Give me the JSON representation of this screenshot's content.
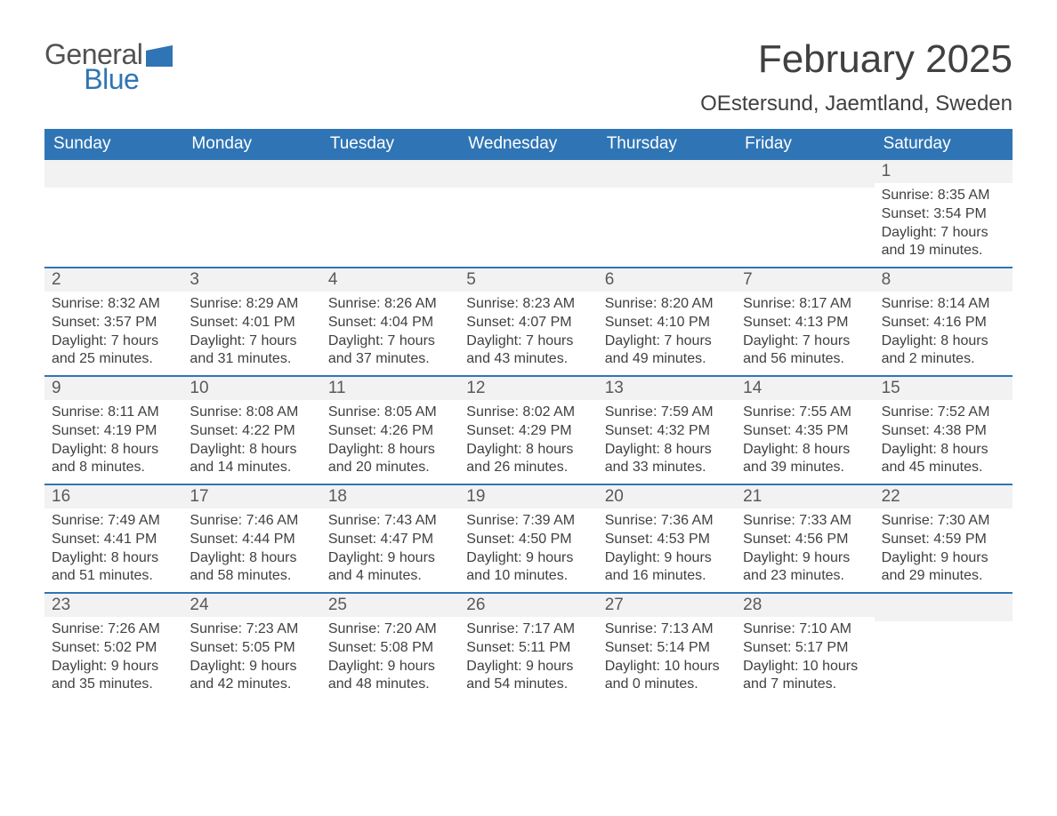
{
  "brand": {
    "word1": "General",
    "word2": "Blue",
    "accent_color": "#2f75b5"
  },
  "title": "February 2025",
  "location": "OEstersund, Jaemtland, Sweden",
  "colors": {
    "header_bg": "#2f75b5",
    "header_text": "#ffffff",
    "daynum_bg": "#f2f2f2",
    "daynum_text": "#595959",
    "body_text": "#404040",
    "row_divider": "#2f75b5",
    "page_bg": "#ffffff"
  },
  "fonts": {
    "title_pt": 44,
    "location_pt": 24,
    "header_pt": 19,
    "daynum_pt": 19,
    "detail_pt": 16
  },
  "day_names": [
    "Sunday",
    "Monday",
    "Tuesday",
    "Wednesday",
    "Thursday",
    "Friday",
    "Saturday"
  ],
  "weeks": [
    [
      {
        "blank": true
      },
      {
        "blank": true
      },
      {
        "blank": true
      },
      {
        "blank": true
      },
      {
        "blank": true
      },
      {
        "blank": true
      },
      {
        "n": "1",
        "sunrise": "Sunrise: 8:35 AM",
        "sunset": "Sunset: 3:54 PM",
        "dl1": "Daylight: 7 hours",
        "dl2": "and 19 minutes."
      }
    ],
    [
      {
        "n": "2",
        "sunrise": "Sunrise: 8:32 AM",
        "sunset": "Sunset: 3:57 PM",
        "dl1": "Daylight: 7 hours",
        "dl2": "and 25 minutes."
      },
      {
        "n": "3",
        "sunrise": "Sunrise: 8:29 AM",
        "sunset": "Sunset: 4:01 PM",
        "dl1": "Daylight: 7 hours",
        "dl2": "and 31 minutes."
      },
      {
        "n": "4",
        "sunrise": "Sunrise: 8:26 AM",
        "sunset": "Sunset: 4:04 PM",
        "dl1": "Daylight: 7 hours",
        "dl2": "and 37 minutes."
      },
      {
        "n": "5",
        "sunrise": "Sunrise: 8:23 AM",
        "sunset": "Sunset: 4:07 PM",
        "dl1": "Daylight: 7 hours",
        "dl2": "and 43 minutes."
      },
      {
        "n": "6",
        "sunrise": "Sunrise: 8:20 AM",
        "sunset": "Sunset: 4:10 PM",
        "dl1": "Daylight: 7 hours",
        "dl2": "and 49 minutes."
      },
      {
        "n": "7",
        "sunrise": "Sunrise: 8:17 AM",
        "sunset": "Sunset: 4:13 PM",
        "dl1": "Daylight: 7 hours",
        "dl2": "and 56 minutes."
      },
      {
        "n": "8",
        "sunrise": "Sunrise: 8:14 AM",
        "sunset": "Sunset: 4:16 PM",
        "dl1": "Daylight: 8 hours",
        "dl2": "and 2 minutes."
      }
    ],
    [
      {
        "n": "9",
        "sunrise": "Sunrise: 8:11 AM",
        "sunset": "Sunset: 4:19 PM",
        "dl1": "Daylight: 8 hours",
        "dl2": "and 8 minutes."
      },
      {
        "n": "10",
        "sunrise": "Sunrise: 8:08 AM",
        "sunset": "Sunset: 4:22 PM",
        "dl1": "Daylight: 8 hours",
        "dl2": "and 14 minutes."
      },
      {
        "n": "11",
        "sunrise": "Sunrise: 8:05 AM",
        "sunset": "Sunset: 4:26 PM",
        "dl1": "Daylight: 8 hours",
        "dl2": "and 20 minutes."
      },
      {
        "n": "12",
        "sunrise": "Sunrise: 8:02 AM",
        "sunset": "Sunset: 4:29 PM",
        "dl1": "Daylight: 8 hours",
        "dl2": "and 26 minutes."
      },
      {
        "n": "13",
        "sunrise": "Sunrise: 7:59 AM",
        "sunset": "Sunset: 4:32 PM",
        "dl1": "Daylight: 8 hours",
        "dl2": "and 33 minutes."
      },
      {
        "n": "14",
        "sunrise": "Sunrise: 7:55 AM",
        "sunset": "Sunset: 4:35 PM",
        "dl1": "Daylight: 8 hours",
        "dl2": "and 39 minutes."
      },
      {
        "n": "15",
        "sunrise": "Sunrise: 7:52 AM",
        "sunset": "Sunset: 4:38 PM",
        "dl1": "Daylight: 8 hours",
        "dl2": "and 45 minutes."
      }
    ],
    [
      {
        "n": "16",
        "sunrise": "Sunrise: 7:49 AM",
        "sunset": "Sunset: 4:41 PM",
        "dl1": "Daylight: 8 hours",
        "dl2": "and 51 minutes."
      },
      {
        "n": "17",
        "sunrise": "Sunrise: 7:46 AM",
        "sunset": "Sunset: 4:44 PM",
        "dl1": "Daylight: 8 hours",
        "dl2": "and 58 minutes."
      },
      {
        "n": "18",
        "sunrise": "Sunrise: 7:43 AM",
        "sunset": "Sunset: 4:47 PM",
        "dl1": "Daylight: 9 hours",
        "dl2": "and 4 minutes."
      },
      {
        "n": "19",
        "sunrise": "Sunrise: 7:39 AM",
        "sunset": "Sunset: 4:50 PM",
        "dl1": "Daylight: 9 hours",
        "dl2": "and 10 minutes."
      },
      {
        "n": "20",
        "sunrise": "Sunrise: 7:36 AM",
        "sunset": "Sunset: 4:53 PM",
        "dl1": "Daylight: 9 hours",
        "dl2": "and 16 minutes."
      },
      {
        "n": "21",
        "sunrise": "Sunrise: 7:33 AM",
        "sunset": "Sunset: 4:56 PM",
        "dl1": "Daylight: 9 hours",
        "dl2": "and 23 minutes."
      },
      {
        "n": "22",
        "sunrise": "Sunrise: 7:30 AM",
        "sunset": "Sunset: 4:59 PM",
        "dl1": "Daylight: 9 hours",
        "dl2": "and 29 minutes."
      }
    ],
    [
      {
        "n": "23",
        "sunrise": "Sunrise: 7:26 AM",
        "sunset": "Sunset: 5:02 PM",
        "dl1": "Daylight: 9 hours",
        "dl2": "and 35 minutes."
      },
      {
        "n": "24",
        "sunrise": "Sunrise: 7:23 AM",
        "sunset": "Sunset: 5:05 PM",
        "dl1": "Daylight: 9 hours",
        "dl2": "and 42 minutes."
      },
      {
        "n": "25",
        "sunrise": "Sunrise: 7:20 AM",
        "sunset": "Sunset: 5:08 PM",
        "dl1": "Daylight: 9 hours",
        "dl2": "and 48 minutes."
      },
      {
        "n": "26",
        "sunrise": "Sunrise: 7:17 AM",
        "sunset": "Sunset: 5:11 PM",
        "dl1": "Daylight: 9 hours",
        "dl2": "and 54 minutes."
      },
      {
        "n": "27",
        "sunrise": "Sunrise: 7:13 AM",
        "sunset": "Sunset: 5:14 PM",
        "dl1": "Daylight: 10 hours",
        "dl2": "and 0 minutes."
      },
      {
        "n": "28",
        "sunrise": "Sunrise: 7:10 AM",
        "sunset": "Sunset: 5:17 PM",
        "dl1": "Daylight: 10 hours",
        "dl2": "and 7 minutes."
      },
      {
        "blank": true
      }
    ]
  ]
}
